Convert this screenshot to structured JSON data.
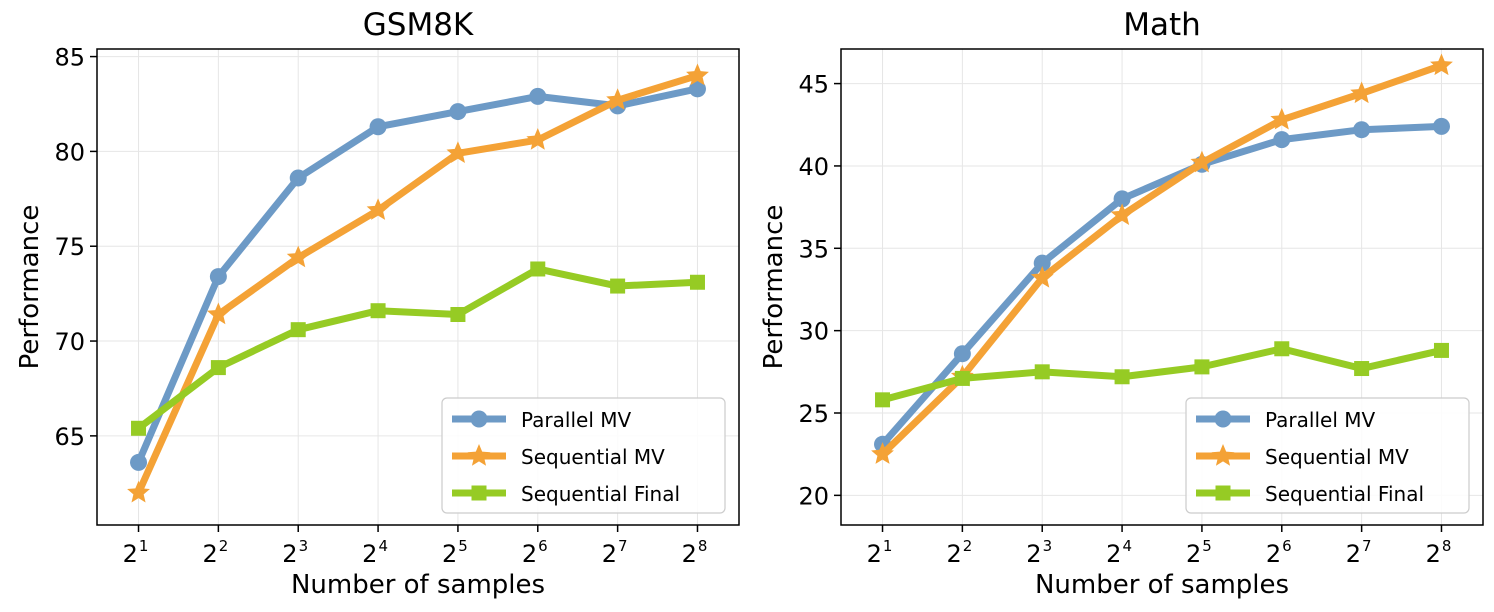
{
  "chart_data": [
    {
      "type": "line",
      "title": "GSM8K",
      "xlabel": "Number of samples",
      "ylabel": "Performance",
      "x_tick_labels": [
        {
          "base": "2",
          "exp": "1"
        },
        {
          "base": "2",
          "exp": "2"
        },
        {
          "base": "2",
          "exp": "3"
        },
        {
          "base": "2",
          "exp": "4"
        },
        {
          "base": "2",
          "exp": "5"
        },
        {
          "base": "2",
          "exp": "6"
        },
        {
          "base": "2",
          "exp": "7"
        },
        {
          "base": "2",
          "exp": "8"
        }
      ],
      "x_scale": "log2",
      "x": [
        2,
        4,
        8,
        16,
        32,
        64,
        128,
        256
      ],
      "yticks": [
        "65",
        "70",
        "75",
        "80",
        "85"
      ],
      "ylim": [
        60.3,
        85.4
      ],
      "grid": true,
      "legend_position": "lower-right",
      "series": [
        {
          "name": "Parallel MV",
          "marker": "circle",
          "color": "#6d9ac6",
          "values": [
            63.6,
            73.4,
            78.6,
            81.3,
            82.1,
            82.9,
            82.4,
            83.3
          ]
        },
        {
          "name": "Sequential MV",
          "marker": "star",
          "color": "#f4a236",
          "values": [
            62.0,
            71.4,
            74.4,
            76.9,
            79.9,
            80.6,
            82.7,
            84.0
          ]
        },
        {
          "name": "Sequential Final",
          "marker": "square",
          "color": "#96cb24",
          "values": [
            65.4,
            68.6,
            70.6,
            71.6,
            71.4,
            73.8,
            72.9,
            73.1
          ]
        }
      ]
    },
    {
      "type": "line",
      "title": "Math",
      "xlabel": "Number of samples",
      "ylabel": "Performance",
      "x_tick_labels": [
        {
          "base": "2",
          "exp": "1"
        },
        {
          "base": "2",
          "exp": "2"
        },
        {
          "base": "2",
          "exp": "3"
        },
        {
          "base": "2",
          "exp": "4"
        },
        {
          "base": "2",
          "exp": "5"
        },
        {
          "base": "2",
          "exp": "6"
        },
        {
          "base": "2",
          "exp": "7"
        },
        {
          "base": "2",
          "exp": "8"
        }
      ],
      "x_scale": "log2",
      "x": [
        2,
        4,
        8,
        16,
        32,
        64,
        128,
        256
      ],
      "yticks": [
        "20",
        "25",
        "30",
        "35",
        "40",
        "45"
      ],
      "ylim": [
        18.2,
        47.1
      ],
      "grid": true,
      "legend_position": "lower-right",
      "series": [
        {
          "name": "Parallel MV",
          "marker": "circle",
          "color": "#6d9ac6",
          "values": [
            23.1,
            28.6,
            34.1,
            38.0,
            40.1,
            41.6,
            42.2,
            42.4
          ]
        },
        {
          "name": "Sequential MV",
          "marker": "star",
          "color": "#f4a236",
          "values": [
            22.5,
            27.2,
            33.2,
            37.0,
            40.2,
            42.8,
            44.4,
            46.1
          ]
        },
        {
          "name": "Sequential Final",
          "marker": "square",
          "color": "#96cb24",
          "values": [
            25.8,
            27.1,
            27.5,
            27.2,
            27.8,
            28.9,
            27.7,
            28.8
          ]
        }
      ]
    }
  ]
}
